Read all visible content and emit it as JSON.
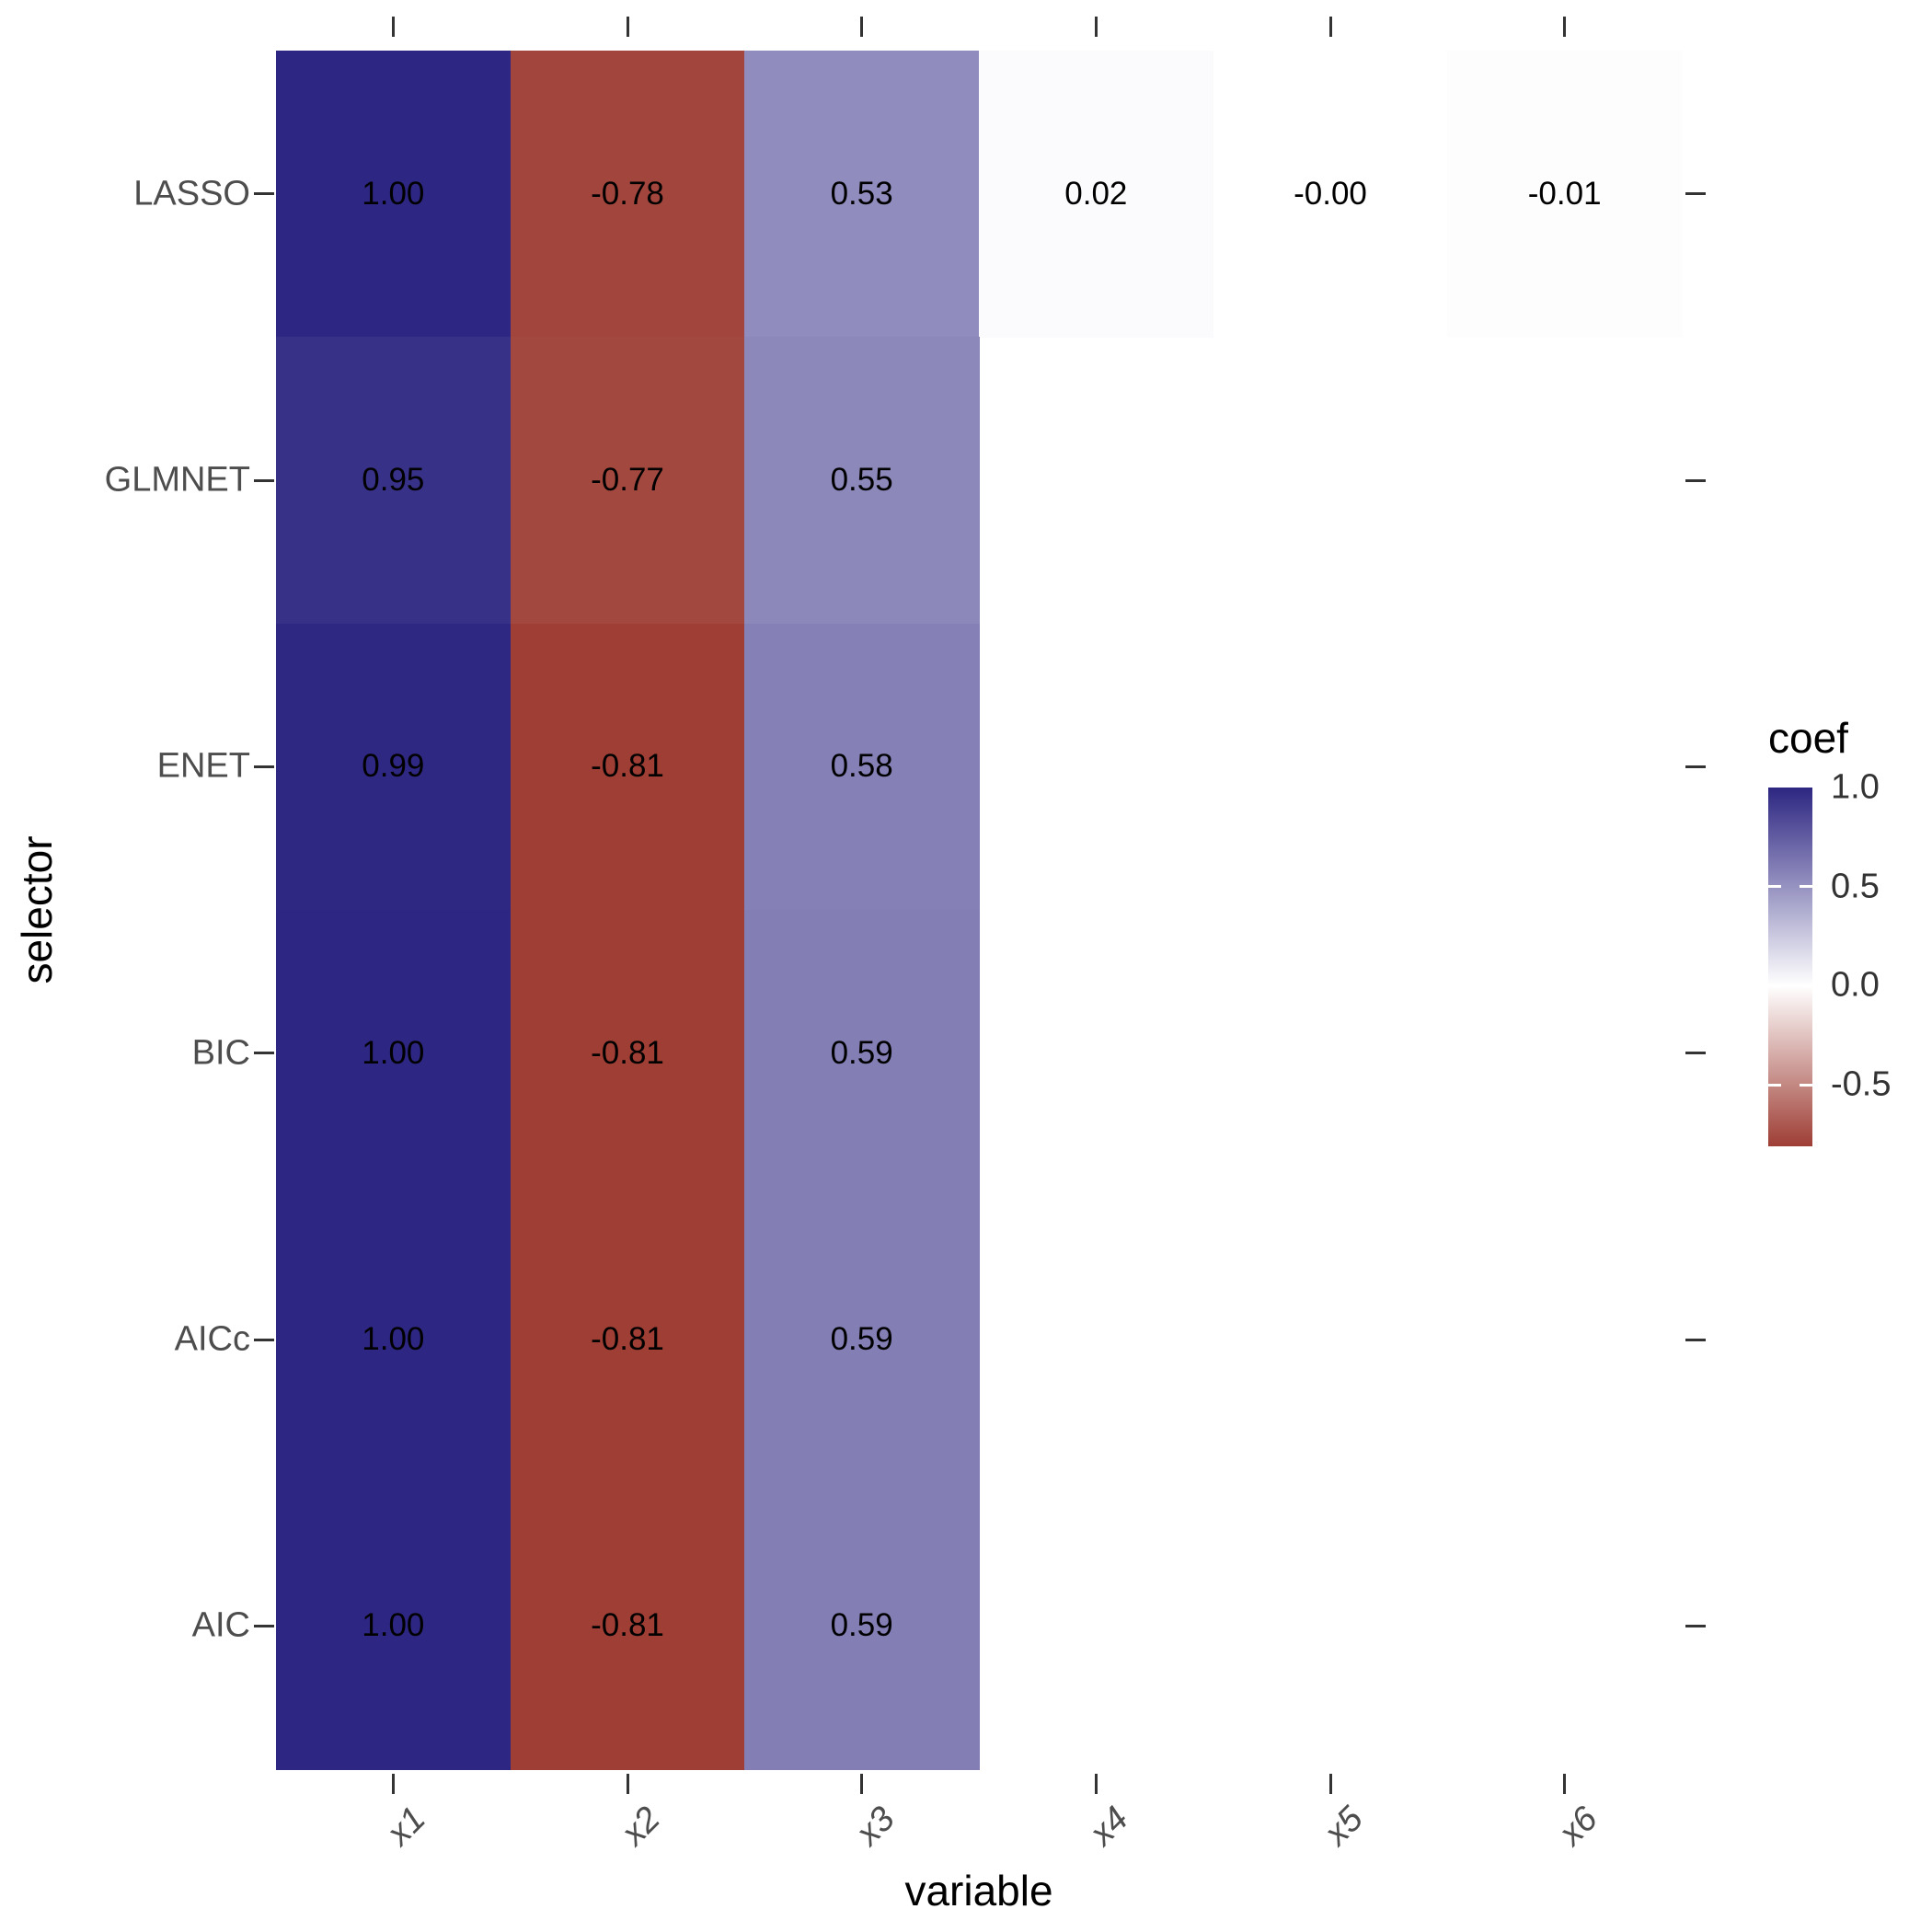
{
  "chart_data": {
    "type": "heatmap",
    "title": "",
    "xlabel": "variable",
    "ylabel": "selector",
    "x_categories": [
      "x1",
      "x2",
      "x3",
      "x4",
      "x5",
      "x6"
    ],
    "y_categories": [
      "LASSO",
      "GLMNET",
      "ENET",
      "BIC",
      "AICc",
      "AIC"
    ],
    "values": [
      [
        1.0,
        -0.78,
        0.53,
        0.02,
        -0.0,
        -0.01
      ],
      [
        0.95,
        -0.77,
        0.55,
        null,
        null,
        null
      ],
      [
        0.99,
        -0.81,
        0.58,
        null,
        null,
        null
      ],
      [
        1.0,
        -0.81,
        0.59,
        null,
        null,
        null
      ],
      [
        1.0,
        -0.81,
        0.59,
        null,
        null,
        null
      ],
      [
        1.0,
        -0.81,
        0.59,
        null,
        null,
        null
      ]
    ],
    "value_labels": [
      [
        "1.00",
        "-0.78",
        "0.53",
        "0.02",
        "-0.00",
        "-0.01"
      ],
      [
        "0.95",
        "-0.77",
        "0.55",
        "",
        "",
        ""
      ],
      [
        "0.99",
        "-0.81",
        "0.58",
        "",
        "",
        ""
      ],
      [
        "1.00",
        "-0.81",
        "0.59",
        "",
        "",
        ""
      ],
      [
        "1.00",
        "-0.81",
        "0.59",
        "",
        "",
        ""
      ],
      [
        "1.00",
        "-0.81",
        "0.59",
        "",
        "",
        ""
      ]
    ],
    "missing_cells_rendered": "blank",
    "grid": false,
    "legend_position": "right",
    "background": "#FFFFFF",
    "legend": {
      "title": "coef",
      "tick_labels": [
        "1.0",
        "0.5",
        "0.0",
        "-0.5"
      ],
      "tick_values": [
        1.0,
        0.5,
        0.0,
        -0.5
      ],
      "domain_min": -0.81,
      "domain_max": 1.0,
      "color_low": "#9E3E35",
      "color_mid": "#FFFFFF",
      "color_high": "#2D2682"
    }
  }
}
